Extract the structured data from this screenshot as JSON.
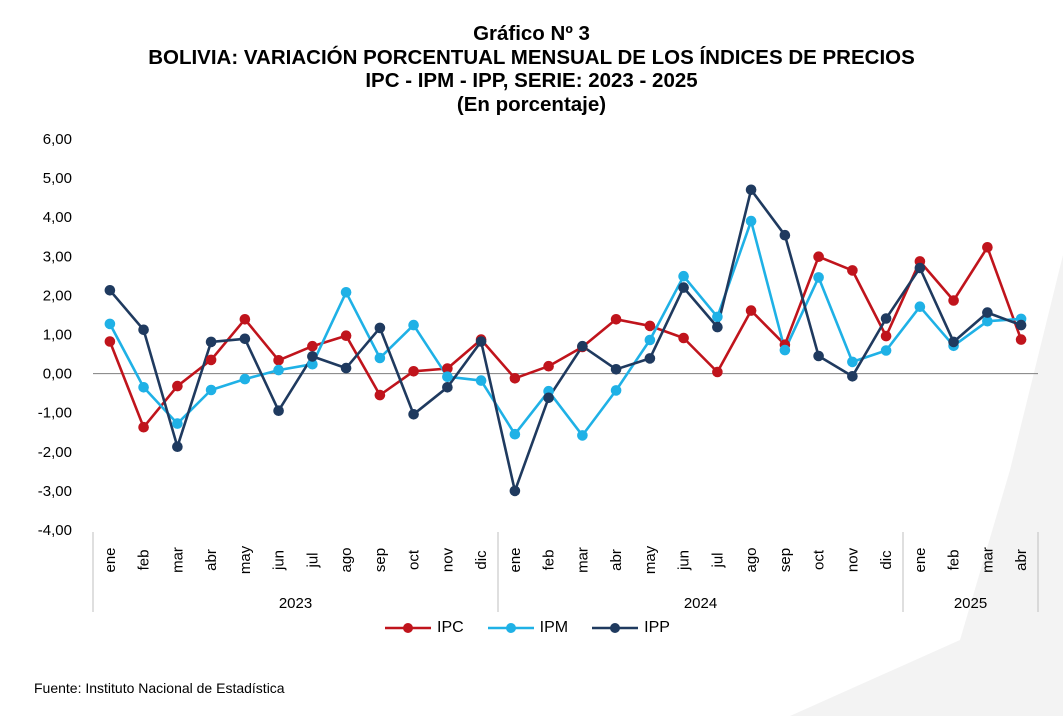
{
  "title_lines": [
    "Gráfico Nº 3",
    "BOLIVIA: VARIACIÓN PORCENTUAL MENSUAL DE LOS ÍNDICES DE PRECIOS",
    "IPC - IPM - IPP, SERIE: 2023 - 2025",
    "(En porcentaje)"
  ],
  "source": "Fuente: Instituto Nacional de Estadística",
  "colors": {
    "IPC": "#c0141c",
    "IPM": "#1fb1e6",
    "IPP": "#1f3a5f"
  },
  "chart_data": {
    "type": "line",
    "title": "BOLIVIA: VARIACIÓN PORCENTUAL MENSUAL DE LOS ÍNDICES DE PRECIOS",
    "ylim": [
      -4,
      6
    ],
    "y_ticks": [
      "6,00",
      "5,00",
      "4,00",
      "3,00",
      "2,00",
      "1,00",
      "0,00",
      "-1,00",
      "-2,00",
      "-3,00",
      "-4,00"
    ],
    "grid": false,
    "legend_position": "bottom",
    "categories": [
      "ene",
      "feb",
      "mar",
      "abr",
      "may",
      "jun",
      "jul",
      "ago",
      "sep",
      "oct",
      "nov",
      "dic",
      "ene",
      "feb",
      "mar",
      "abr",
      "may",
      "jun",
      "jul",
      "ago",
      "sep",
      "oct",
      "nov",
      "dic",
      "ene",
      "feb",
      "mar",
      "abr"
    ],
    "year_groups": [
      {
        "label": "2023",
        "count": 12
      },
      {
        "label": "2024",
        "count": 12
      },
      {
        "label": "2025",
        "count": 4
      }
    ],
    "series": [
      {
        "name": "IPC",
        "values": [
          0.82,
          -1.37,
          -0.32,
          0.35,
          1.39,
          0.34,
          0.7,
          0.97,
          -0.55,
          0.06,
          0.13,
          0.87,
          -0.12,
          0.19,
          0.68,
          1.39,
          1.22,
          0.91,
          0.04,
          1.61,
          0.74,
          2.99,
          2.64,
          0.96,
          2.87,
          1.87,
          3.23,
          0.87
        ]
      },
      {
        "name": "IPM",
        "values": [
          1.27,
          -0.35,
          -1.28,
          -0.42,
          -0.14,
          0.09,
          0.24,
          2.08,
          0.4,
          1.24,
          -0.08,
          -0.18,
          -1.55,
          -0.45,
          -1.58,
          -0.43,
          0.86,
          2.49,
          1.45,
          3.9,
          0.6,
          2.46,
          0.3,
          0.59,
          1.71,
          0.71,
          1.34,
          1.4
        ]
      },
      {
        "name": "IPP",
        "values": [
          2.13,
          1.12,
          -1.87,
          0.81,
          0.89,
          -0.95,
          0.44,
          0.14,
          1.17,
          -1.04,
          -0.35,
          0.82,
          -3.0,
          -0.62,
          0.7,
          0.11,
          0.39,
          2.2,
          1.19,
          4.7,
          3.54,
          0.45,
          -0.07,
          1.41,
          2.7,
          0.81,
          1.56,
          1.24
        ]
      }
    ]
  }
}
